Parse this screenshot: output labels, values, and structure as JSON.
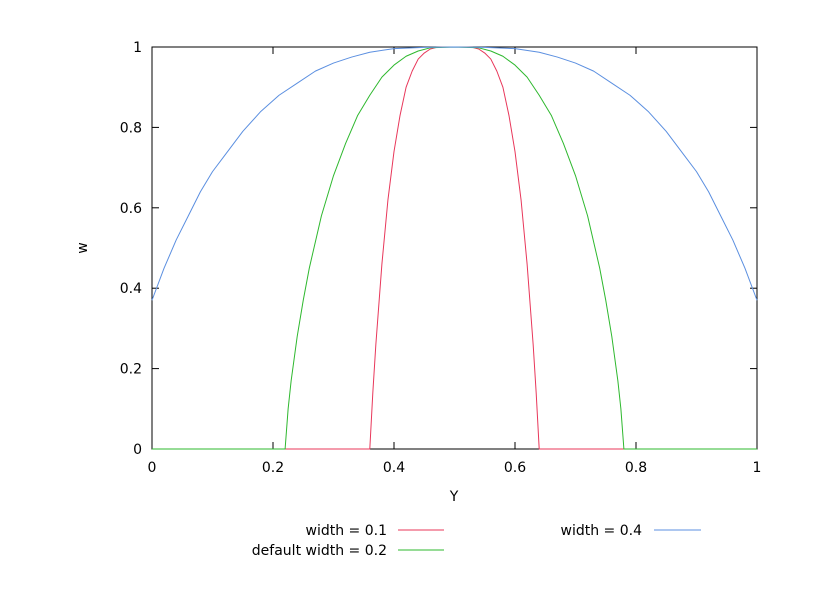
{
  "chart_data": {
    "type": "line",
    "title": "",
    "xlabel": "Y",
    "ylabel": "w",
    "xlim": [
      0,
      1
    ],
    "ylim": [
      0,
      1
    ],
    "x_ticks": [
      0,
      0.2,
      0.4,
      0.6,
      0.8,
      1
    ],
    "x_tick_labels": [
      "0",
      "0.2",
      "0.4",
      "0.6",
      "0.8",
      "1"
    ],
    "y_ticks": [
      0,
      0.2,
      0.4,
      0.6,
      0.8,
      1
    ],
    "y_tick_labels": [
      "0",
      "0.2",
      "0.4",
      "0.6",
      "0.8",
      "1"
    ],
    "grid": false,
    "legend_position": "bottom",
    "series": [
      {
        "name": "width = 0.1",
        "color": "#e8375a",
        "x": [
          0,
          0.36,
          0.365,
          0.37,
          0.38,
          0.39,
          0.4,
          0.41,
          0.42,
          0.43,
          0.44,
          0.45,
          0.46,
          0.47,
          0.48,
          0.5,
          0.52,
          0.53,
          0.54,
          0.55,
          0.56,
          0.57,
          0.58,
          0.59,
          0.6,
          0.61,
          0.62,
          0.63,
          0.635,
          0.64,
          1
        ],
        "values": [
          0,
          0,
          0.14,
          0.26,
          0.46,
          0.62,
          0.74,
          0.83,
          0.9,
          0.94,
          0.97,
          0.985,
          0.995,
          0.999,
          1.0,
          1.0,
          1.0,
          0.999,
          0.995,
          0.985,
          0.97,
          0.94,
          0.9,
          0.83,
          0.74,
          0.62,
          0.46,
          0.26,
          0.14,
          0,
          0
        ]
      },
      {
        "name": "default width = 0.2",
        "color": "#2eb82e",
        "x": [
          0,
          0.22,
          0.225,
          0.23,
          0.24,
          0.25,
          0.26,
          0.28,
          0.3,
          0.32,
          0.34,
          0.36,
          0.38,
          0.4,
          0.42,
          0.44,
          0.46,
          0.5,
          0.54,
          0.56,
          0.58,
          0.6,
          0.62,
          0.64,
          0.66,
          0.68,
          0.7,
          0.72,
          0.74,
          0.75,
          0.76,
          0.77,
          0.775,
          0.78,
          1
        ],
        "values": [
          0,
          0,
          0.1,
          0.17,
          0.28,
          0.37,
          0.45,
          0.58,
          0.68,
          0.76,
          0.83,
          0.88,
          0.925,
          0.955,
          0.977,
          0.99,
          0.998,
          1.0,
          0.998,
          0.99,
          0.977,
          0.955,
          0.925,
          0.88,
          0.83,
          0.76,
          0.68,
          0.58,
          0.45,
          0.37,
          0.28,
          0.17,
          0.1,
          0,
          0
        ]
      },
      {
        "name": "width = 0.4",
        "color": "#5b8fe0",
        "x": [
          0,
          0.02,
          0.04,
          0.06,
          0.08,
          0.1,
          0.12,
          0.15,
          0.18,
          0.21,
          0.24,
          0.27,
          0.3,
          0.33,
          0.36,
          0.4,
          0.45,
          0.5,
          0.55,
          0.6,
          0.64,
          0.67,
          0.7,
          0.73,
          0.76,
          0.79,
          0.82,
          0.85,
          0.88,
          0.9,
          0.92,
          0.94,
          0.96,
          0.98,
          1.0
        ],
        "values": [
          0.37,
          0.45,
          0.52,
          0.58,
          0.64,
          0.69,
          0.73,
          0.79,
          0.84,
          0.88,
          0.91,
          0.94,
          0.96,
          0.975,
          0.987,
          0.996,
          0.999,
          1.0,
          0.999,
          0.996,
          0.987,
          0.975,
          0.96,
          0.94,
          0.91,
          0.88,
          0.84,
          0.79,
          0.73,
          0.69,
          0.64,
          0.58,
          0.52,
          0.45,
          0.37
        ]
      }
    ]
  }
}
